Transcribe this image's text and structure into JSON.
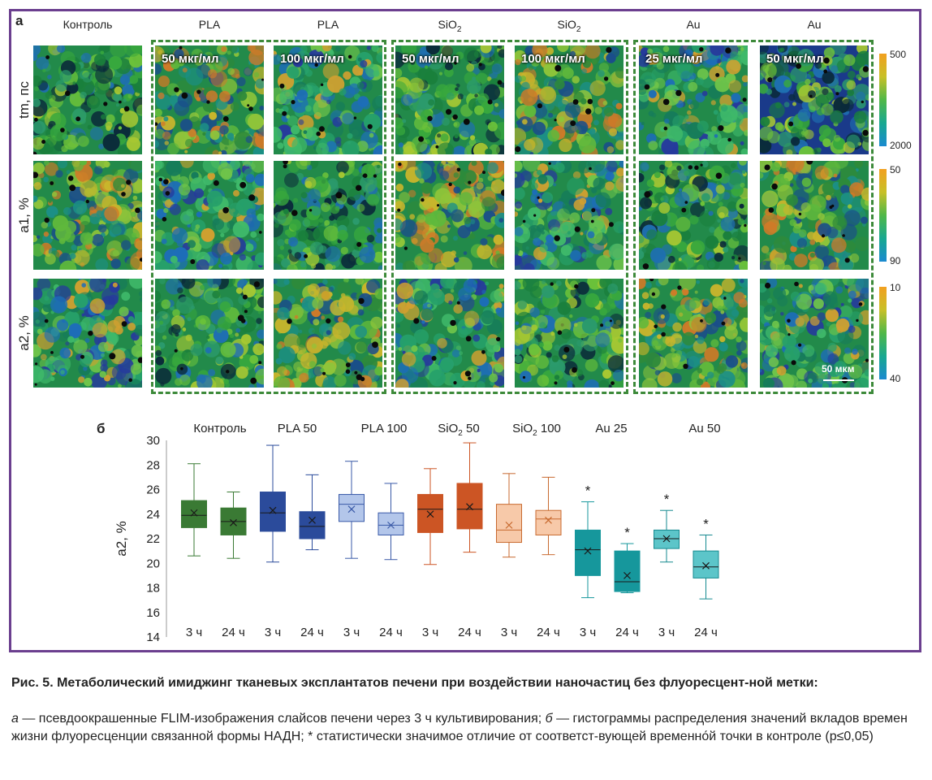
{
  "panel_a": {
    "label": "а",
    "columns": [
      {
        "name": "Контроль",
        "conc": ""
      },
      {
        "name": "PLA",
        "conc": "50 мкг/мл"
      },
      {
        "name": "PLA",
        "conc": "100 мкг/мл"
      },
      {
        "name": "SiO",
        "sub": "2",
        "conc": "50 мкг/мл"
      },
      {
        "name": "SiO",
        "sub": "2",
        "conc": "100 мкг/мл"
      },
      {
        "name": "Au",
        "conc": "25 мкг/мл"
      },
      {
        "name": "Au",
        "conc": "50 мкг/мл"
      }
    ],
    "rows": [
      "tm, пс",
      "a1, %",
      "a2, %"
    ],
    "colorbars": [
      {
        "top": "500",
        "bottom": "2000"
      },
      {
        "top": "50",
        "bottom": "90"
      },
      {
        "top": "10",
        "bottom": "40"
      }
    ],
    "scalebar": "50 мкм",
    "group_border_color": "#3d8a3a"
  },
  "panel_b": {
    "label": "б",
    "group_labels": [
      {
        "text": "Контроль"
      },
      {
        "text": "PLA 50"
      },
      {
        "text": "PLA 100"
      },
      {
        "text": "SiO",
        "sub": "2",
        "tail": " 50"
      },
      {
        "text": "SiO",
        "sub": "2",
        "tail": " 100"
      },
      {
        "text": "Au 25"
      },
      {
        "text": "Au 50"
      }
    ]
  },
  "chart_data": {
    "type": "box",
    "ylabel": "a2, %",
    "ylim": [
      14,
      30
    ],
    "yticks": [
      14,
      16,
      18,
      20,
      22,
      24,
      26,
      28,
      30
    ],
    "categories": [
      "3 ч",
      "24 ч",
      "3 ч",
      "24 ч",
      "3 ч",
      "24 ч",
      "3 ч",
      "24 ч",
      "3 ч",
      "24 ч",
      "3 ч",
      "24 ч",
      "3 ч",
      "24 ч"
    ],
    "groups": [
      "Контроль",
      "PLA 50",
      "PLA 100",
      "SiO2 50",
      "SiO2 100",
      "Au 25",
      "Au 50"
    ],
    "boxes": [
      {
        "group": "Контроль",
        "time": "3 ч",
        "min": 20.6,
        "q1": 22.9,
        "median": 23.9,
        "q3": 25.1,
        "max": 28.1,
        "mean": 24.1,
        "color": "#3a7a34",
        "significant": false
      },
      {
        "group": "Контроль",
        "time": "24 ч",
        "min": 20.4,
        "q1": 22.3,
        "median": 23.4,
        "q3": 24.5,
        "max": 25.8,
        "mean": 23.3,
        "color": "#3a7a34",
        "significant": false
      },
      {
        "group": "PLA 50",
        "time": "3 ч",
        "min": 20.1,
        "q1": 22.6,
        "median": 24.1,
        "q3": 25.8,
        "max": 29.6,
        "mean": 24.3,
        "color": "#2b4b9b",
        "significant": false
      },
      {
        "group": "PLA 50",
        "time": "24 ч",
        "min": 21.1,
        "q1": 22.0,
        "median": 23.0,
        "q3": 24.2,
        "max": 27.2,
        "mean": 23.5,
        "color": "#2b4b9b",
        "significant": false
      },
      {
        "group": "PLA 100",
        "time": "3 ч",
        "min": 20.4,
        "q1": 23.4,
        "median": 24.8,
        "q3": 25.6,
        "max": 28.3,
        "mean": 24.4,
        "color": "#b3c6ea",
        "significant": false
      },
      {
        "group": "PLA 100",
        "time": "24 ч",
        "min": 20.3,
        "q1": 22.3,
        "median": 23.1,
        "q3": 24.1,
        "max": 26.5,
        "mean": 23.1,
        "color": "#b3c6ea",
        "significant": false
      },
      {
        "group": "SiO2 50",
        "time": "3 ч",
        "min": 19.9,
        "q1": 22.5,
        "median": 24.4,
        "q3": 25.6,
        "max": 27.7,
        "mean": 24.0,
        "color": "#cc5524",
        "significant": false
      },
      {
        "group": "SiO2 50",
        "time": "24 ч",
        "min": 20.9,
        "q1": 22.8,
        "median": 24.4,
        "q3": 26.5,
        "max": 29.8,
        "mean": 24.6,
        "color": "#cc5524",
        "significant": false
      },
      {
        "group": "SiO2 100",
        "time": "3 ч",
        "min": 20.5,
        "q1": 21.7,
        "median": 22.7,
        "q3": 24.8,
        "max": 27.3,
        "mean": 23.1,
        "color": "#f7c9a9",
        "significant": false
      },
      {
        "group": "SiO2 100",
        "time": "24 ч",
        "min": 20.7,
        "q1": 22.3,
        "median": 23.6,
        "q3": 24.3,
        "max": 27.0,
        "mean": 23.5,
        "color": "#f7c9a9",
        "significant": false
      },
      {
        "group": "Au 25",
        "time": "3 ч",
        "min": 17.2,
        "q1": 19.0,
        "median": 21.1,
        "q3": 22.7,
        "max": 25.0,
        "mean": 21.0,
        "color": "#16979c",
        "significant": true
      },
      {
        "group": "Au 25",
        "time": "24 ч",
        "min": 17.6,
        "q1": 17.7,
        "median": 18.5,
        "q3": 21.0,
        "max": 21.6,
        "mean": 19.0,
        "color": "#16979c",
        "significant": true
      },
      {
        "group": "Au 50",
        "time": "3 ч",
        "min": 20.1,
        "q1": 21.2,
        "median": 22.0,
        "q3": 22.7,
        "max": 24.3,
        "mean": 22.0,
        "color": "#5cc5c9",
        "significant": true
      },
      {
        "group": "Au 50",
        "time": "24 ч",
        "min": 17.1,
        "q1": 18.8,
        "median": 19.7,
        "q3": 21.0,
        "max": 22.3,
        "mean": 19.8,
        "color": "#5cc5c9",
        "significant": true
      }
    ],
    "significance_marker": "*",
    "grid": false
  },
  "caption": {
    "title": "Рис. 5. Метаболический имиджинг тканевых эксплантатов печени при воздействии наночастиц без флуоресцент-ной метки:",
    "part_a_letter": "а",
    "part_a_text": " — псевдоокрашенные FLIM-изображения слайсов печени через 3 ч культивирования; ",
    "part_b_letter": "б",
    "part_b_text": " — гистограммы распределения значений вкладов времен жизни флуоресценции связанной формы НАДН; * статистически значимое отличие от соответст-вующей временно́й точки в контроле (p≤0,05)"
  }
}
